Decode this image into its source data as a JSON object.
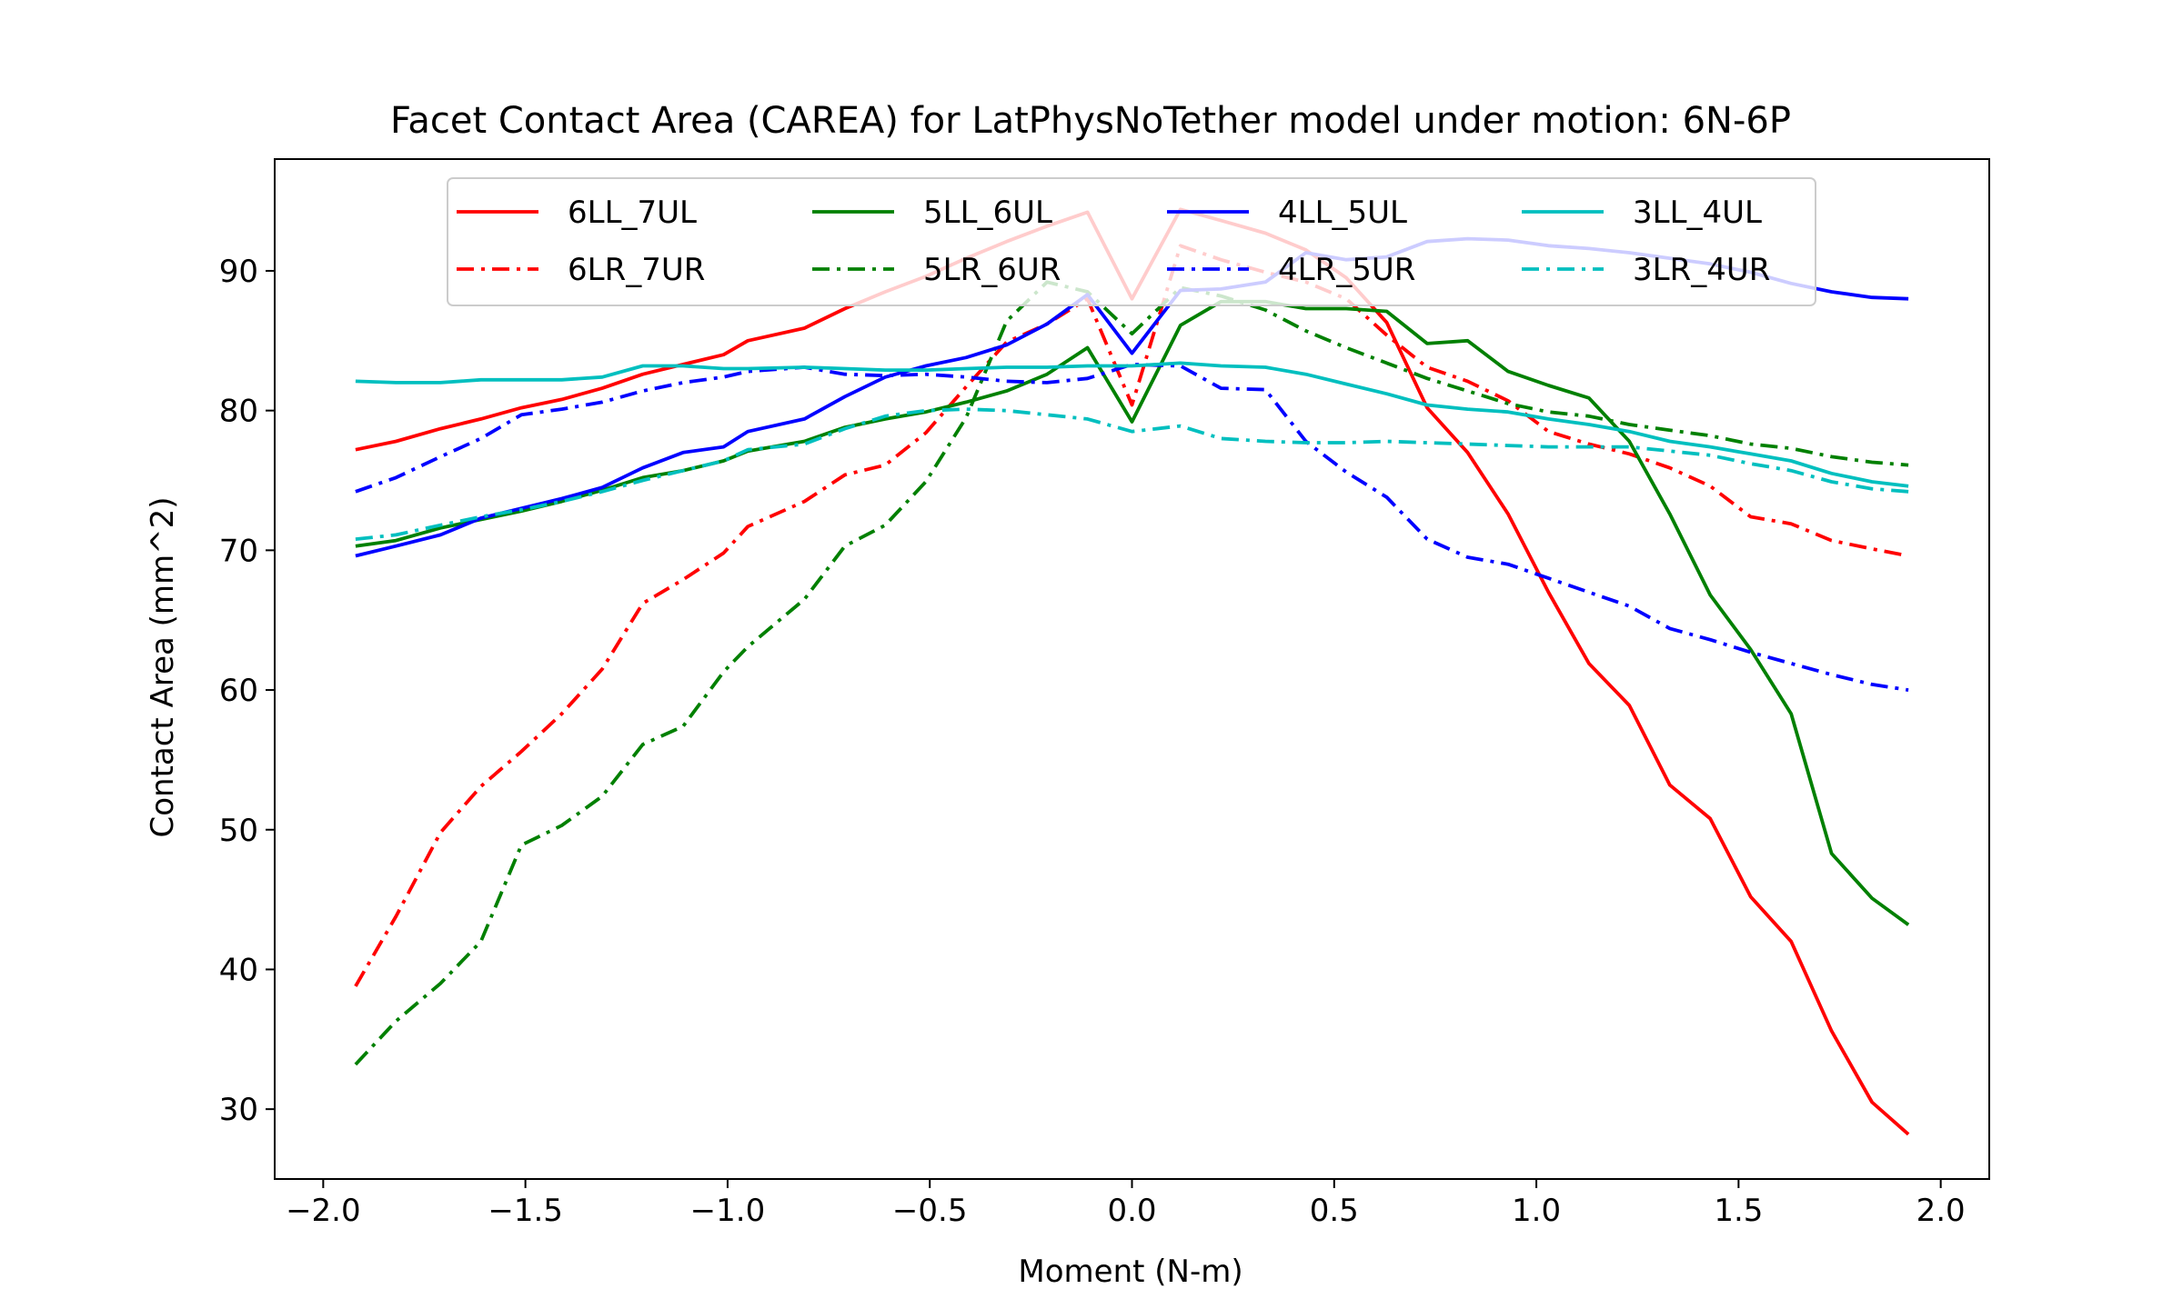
{
  "chart_data": {
    "type": "line",
    "title": "Facet Contact Area (CAREA) for LatPhysNoTether model under motion: 6N-6P",
    "xlabel": "Moment (N-m)",
    "ylabel": "Contact Area (mm^2)",
    "xlim": [
      -2.12,
      2.12
    ],
    "ylim": [
      25,
      98
    ],
    "xticks": [
      -2.0,
      -1.5,
      -1.0,
      -0.5,
      0.0,
      0.5,
      1.0,
      1.5,
      2.0
    ],
    "xtick_labels": [
      "−2.0",
      "−1.5",
      "−1.0",
      "−0.5",
      "0.0",
      "0.5",
      "1.0",
      "1.5",
      "2.0"
    ],
    "yticks": [
      30,
      40,
      50,
      60,
      70,
      80,
      90
    ],
    "ytick_labels": [
      "30",
      "40",
      "50",
      "60",
      "70",
      "80",
      "90"
    ],
    "grid": false,
    "legend_placement": "upper-center",
    "legend_columns": 4,
    "x": [
      -1.92,
      -1.82,
      -1.71,
      -1.61,
      -1.51,
      -1.41,
      -1.31,
      -1.21,
      -1.11,
      -1.01,
      -0.95,
      -0.81,
      -0.71,
      -0.61,
      -0.51,
      -0.41,
      -0.31,
      -0.21,
      -0.11,
      0.0,
      0.12,
      0.22,
      0.33,
      0.43,
      0.53,
      0.63,
      0.73,
      0.83,
      0.93,
      1.03,
      1.13,
      1.23,
      1.33,
      1.43,
      1.53,
      1.63,
      1.73,
      1.83,
      1.92
    ],
    "series": [
      {
        "name": "6LL_7UL",
        "color": "#ff0000",
        "dash": "solid",
        "values": [
          77.2,
          77.8,
          78.7,
          79.4,
          80.2,
          80.8,
          81.6,
          82.6,
          83.3,
          84.0,
          85.0,
          85.9,
          87.3,
          88.5,
          89.6,
          90.9,
          92.1,
          93.2,
          94.2,
          88.0,
          94.4,
          93.6,
          92.7,
          91.5,
          89.5,
          86.3,
          80.2,
          77.0,
          72.6,
          67.0,
          61.9,
          58.9,
          53.2,
          50.8,
          45.2,
          42.0,
          35.6,
          30.5,
          28.2
        ]
      },
      {
        "name": "6LR_7UR",
        "color": "#ff0000",
        "dash": "dashdot",
        "values": [
          38.8,
          43.8,
          49.8,
          53.1,
          55.6,
          58.3,
          61.5,
          66.2,
          67.9,
          69.8,
          71.7,
          73.5,
          75.4,
          76.1,
          78.4,
          81.7,
          84.9,
          86.2,
          88.0,
          80.4,
          91.8,
          90.8,
          89.9,
          89.2,
          88.0,
          85.4,
          83.1,
          82.1,
          80.7,
          78.5,
          77.6,
          76.9,
          75.9,
          74.6,
          72.4,
          71.9,
          70.7,
          70.1,
          69.6
        ]
      },
      {
        "name": "5LL_6UL",
        "color": "#008000",
        "dash": "solid",
        "values": [
          70.3,
          70.7,
          71.6,
          72.2,
          72.8,
          73.5,
          74.3,
          75.2,
          75.7,
          76.4,
          77.1,
          77.8,
          78.8,
          79.4,
          79.9,
          80.6,
          81.4,
          82.6,
          84.5,
          79.2,
          86.1,
          87.8,
          87.8,
          87.3,
          87.3,
          87.1,
          84.8,
          85.0,
          82.8,
          81.8,
          80.9,
          77.8,
          72.6,
          66.8,
          62.9,
          58.3,
          48.3,
          45.1,
          43.2
        ]
      },
      {
        "name": "5LR_6UR",
        "color": "#008000",
        "dash": "dashdot",
        "values": [
          33.2,
          36.3,
          39.0,
          42.0,
          48.9,
          50.3,
          52.4,
          56.1,
          57.4,
          61.3,
          63.1,
          66.5,
          70.3,
          71.8,
          74.9,
          79.5,
          86.4,
          89.2,
          88.5,
          85.5,
          88.8,
          88.2,
          87.2,
          85.7,
          84.5,
          83.4,
          82.3,
          81.4,
          80.5,
          79.9,
          79.6,
          79.0,
          78.6,
          78.2,
          77.6,
          77.3,
          76.7,
          76.3,
          76.1
        ]
      },
      {
        "name": "4LL_5UL",
        "color": "#0000ff",
        "dash": "solid",
        "values": [
          69.6,
          70.3,
          71.1,
          72.3,
          73.0,
          73.7,
          74.5,
          75.9,
          77.0,
          77.4,
          78.5,
          79.4,
          81.0,
          82.4,
          83.2,
          83.8,
          84.7,
          86.2,
          88.3,
          84.1,
          88.6,
          88.7,
          89.2,
          91.3,
          90.8,
          91.0,
          92.1,
          92.3,
          92.2,
          91.8,
          91.6,
          91.3,
          90.9,
          90.5,
          89.9,
          89.1,
          88.5,
          88.1,
          88.0
        ]
      },
      {
        "name": "4LR_5UR",
        "color": "#0000ff",
        "dash": "dashdot",
        "values": [
          74.2,
          75.2,
          76.7,
          78.0,
          79.7,
          80.1,
          80.6,
          81.4,
          82.0,
          82.4,
          82.8,
          83.1,
          82.6,
          82.5,
          82.6,
          82.4,
          82.1,
          82.0,
          82.3,
          83.3,
          83.2,
          81.6,
          81.5,
          77.8,
          75.6,
          73.8,
          70.8,
          69.5,
          69.0,
          68.0,
          67.0,
          66.0,
          64.4,
          63.6,
          62.7,
          61.9,
          61.1,
          60.4,
          60.0
        ]
      },
      {
        "name": "3LL_4UL",
        "color": "#00bfbf",
        "dash": "solid",
        "values": [
          82.1,
          82.0,
          82.0,
          82.2,
          82.2,
          82.2,
          82.4,
          83.2,
          83.2,
          83.0,
          83.0,
          83.1,
          83.0,
          82.9,
          82.9,
          83.0,
          83.1,
          83.1,
          83.2,
          83.2,
          83.4,
          83.2,
          83.1,
          82.6,
          81.9,
          81.2,
          80.4,
          80.1,
          79.9,
          79.4,
          79.0,
          78.5,
          77.8,
          77.4,
          76.9,
          76.4,
          75.5,
          74.9,
          74.6
        ]
      },
      {
        "name": "3LR_4UR",
        "color": "#00bfbf",
        "dash": "dashdot",
        "values": [
          70.8,
          71.1,
          71.8,
          72.4,
          72.9,
          73.5,
          74.2,
          75.0,
          75.7,
          76.4,
          77.2,
          77.6,
          78.7,
          79.6,
          80.0,
          80.1,
          80.0,
          79.7,
          79.4,
          78.5,
          78.9,
          78.0,
          77.8,
          77.7,
          77.7,
          77.8,
          77.7,
          77.6,
          77.5,
          77.4,
          77.4,
          77.4,
          77.1,
          76.8,
          76.2,
          75.7,
          74.9,
          74.4,
          74.2
        ]
      }
    ]
  }
}
